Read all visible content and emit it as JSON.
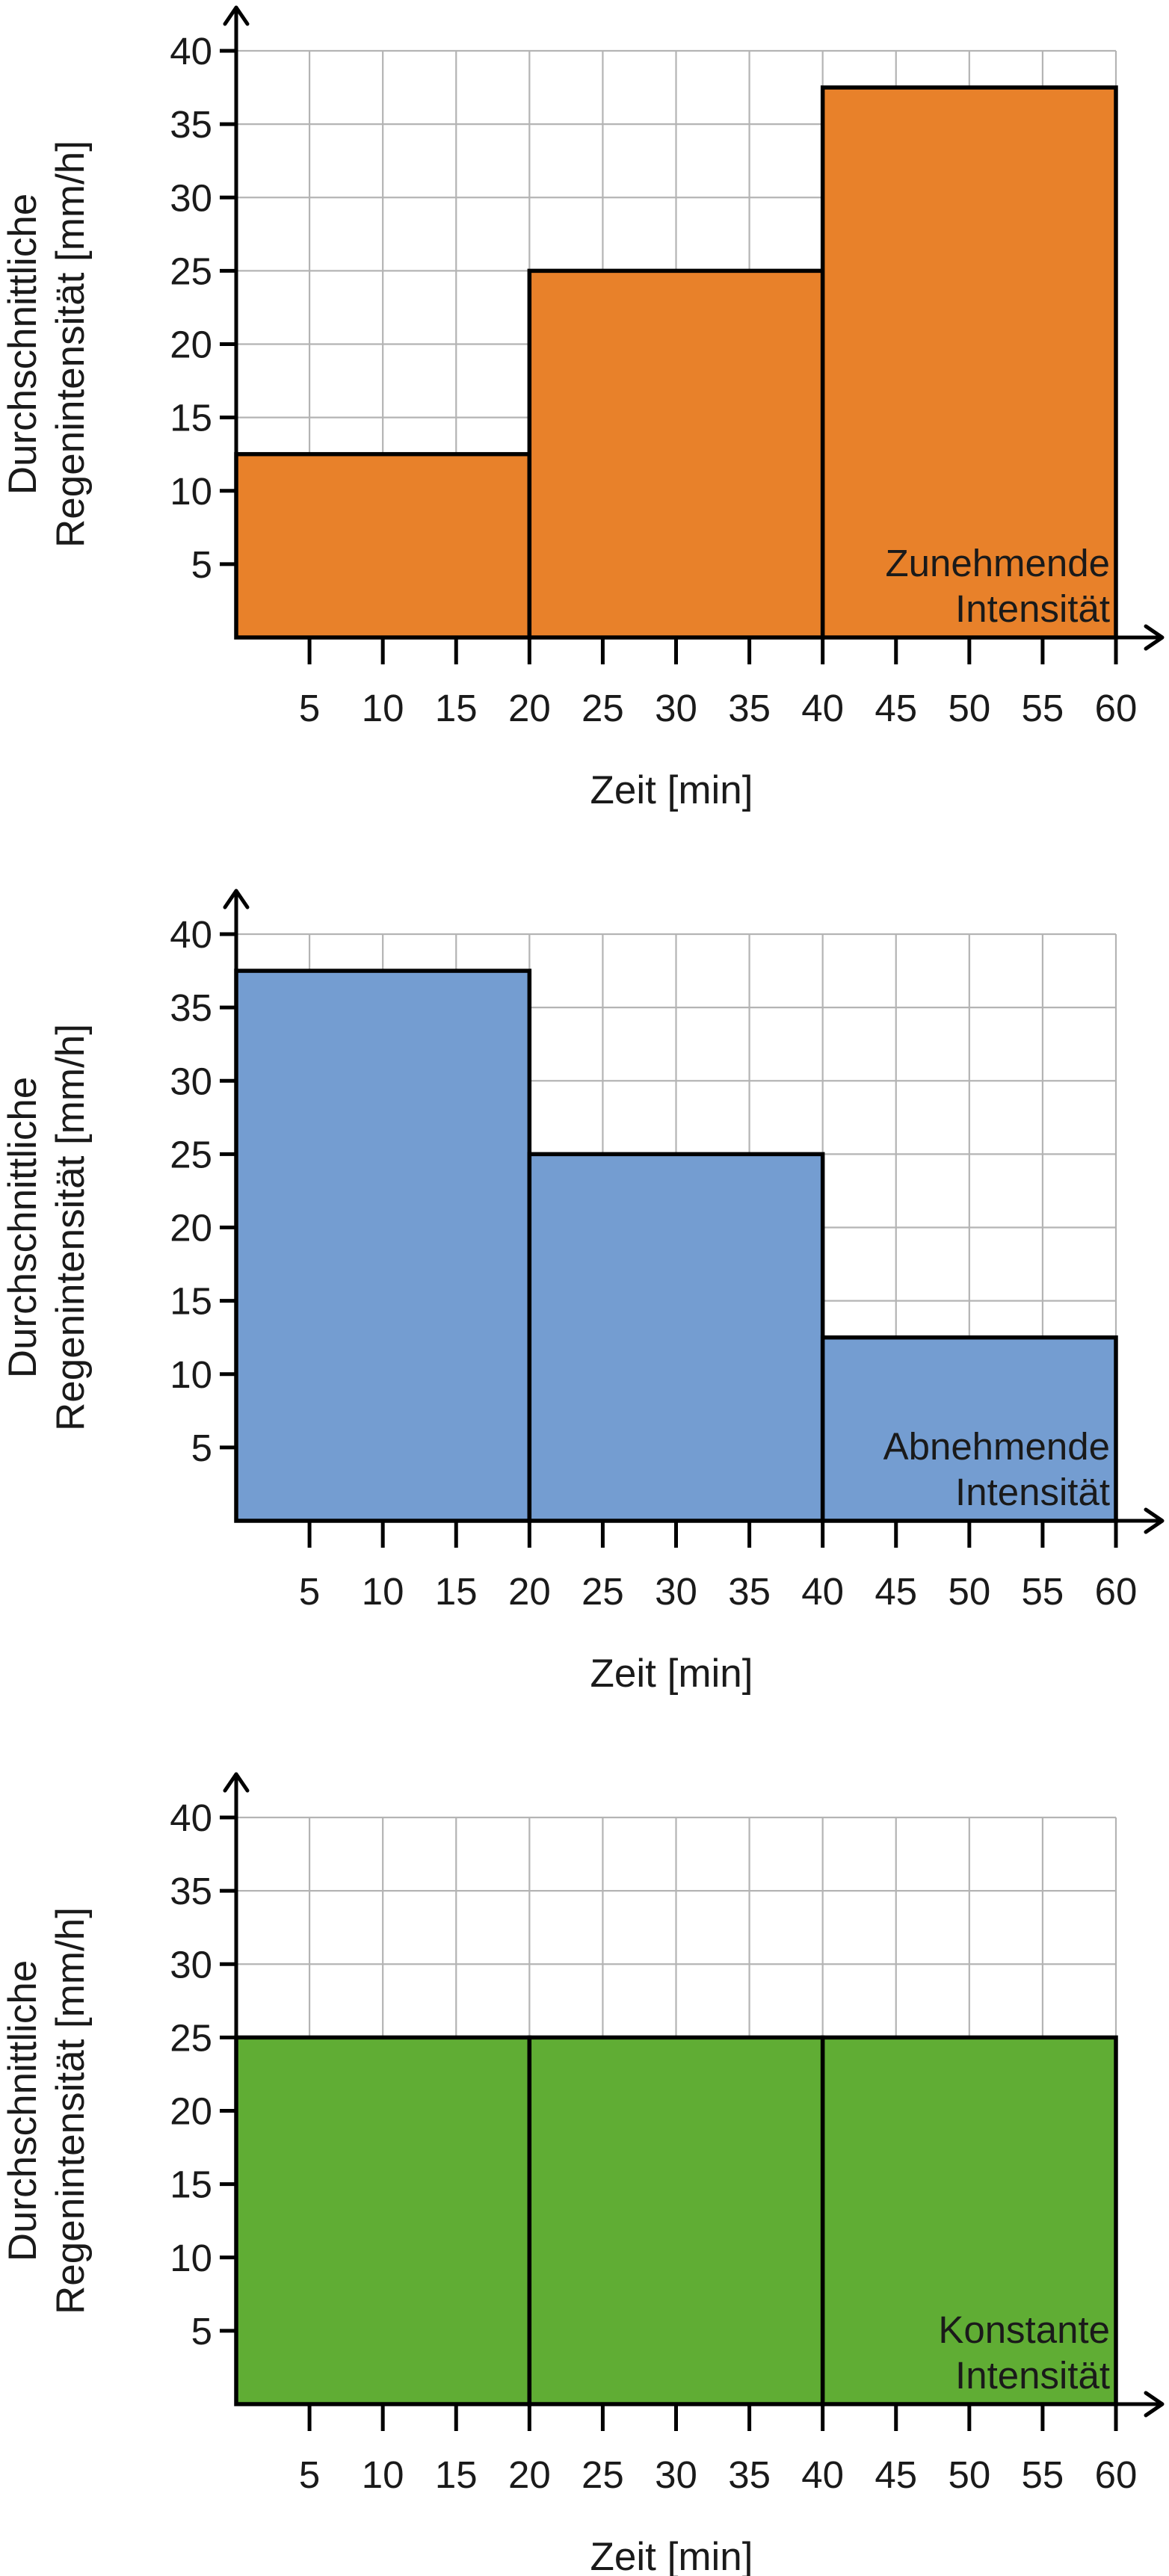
{
  "chart_data": [
    {
      "type": "bar",
      "title": "",
      "xlabel": "Zeit [min]",
      "ylabel": [
        "Durchschnittliche",
        "Regenintensität [mm/h]"
      ],
      "xlim": [
        0,
        60
      ],
      "ylim": [
        0,
        40
      ],
      "x_ticks": [
        5,
        10,
        15,
        20,
        25,
        30,
        35,
        40,
        45,
        50,
        55,
        60
      ],
      "y_ticks": [
        5,
        10,
        15,
        20,
        25,
        30,
        35,
        40
      ],
      "grid": true,
      "bin_edges": [
        0,
        20,
        40,
        60
      ],
      "values": [
        12.5,
        25,
        37.5
      ],
      "color": "#e8812a",
      "annotation": [
        "Zunehmende",
        "Intensität"
      ]
    },
    {
      "type": "bar",
      "title": "",
      "xlabel": "Zeit [min]",
      "ylabel": [
        "Durchschnittliche",
        "Regenintensität [mm/h]"
      ],
      "xlim": [
        0,
        60
      ],
      "ylim": [
        0,
        40
      ],
      "x_ticks": [
        5,
        10,
        15,
        20,
        25,
        30,
        35,
        40,
        45,
        50,
        55,
        60
      ],
      "y_ticks": [
        5,
        10,
        15,
        20,
        25,
        30,
        35,
        40
      ],
      "grid": true,
      "bin_edges": [
        0,
        20,
        40,
        60
      ],
      "values": [
        37.5,
        25,
        12.5
      ],
      "color": "#749dd1",
      "annotation": [
        "Abnehmende",
        "Intensität"
      ]
    },
    {
      "type": "bar",
      "title": "",
      "xlabel": "Zeit [min]",
      "ylabel": [
        "Durchschnittliche",
        "Regenintensität [mm/h]"
      ],
      "xlim": [
        0,
        60
      ],
      "ylim": [
        0,
        40
      ],
      "x_ticks": [
        5,
        10,
        15,
        20,
        25,
        30,
        35,
        40,
        45,
        50,
        55,
        60
      ],
      "y_ticks": [
        5,
        10,
        15,
        20,
        25,
        30,
        35,
        40
      ],
      "grid": true,
      "bin_edges": [
        0,
        20,
        40,
        60
      ],
      "values": [
        25,
        25,
        25
      ],
      "color": "#60ad34",
      "annotation": [
        "Konstante",
        "Intensität"
      ]
    }
  ]
}
